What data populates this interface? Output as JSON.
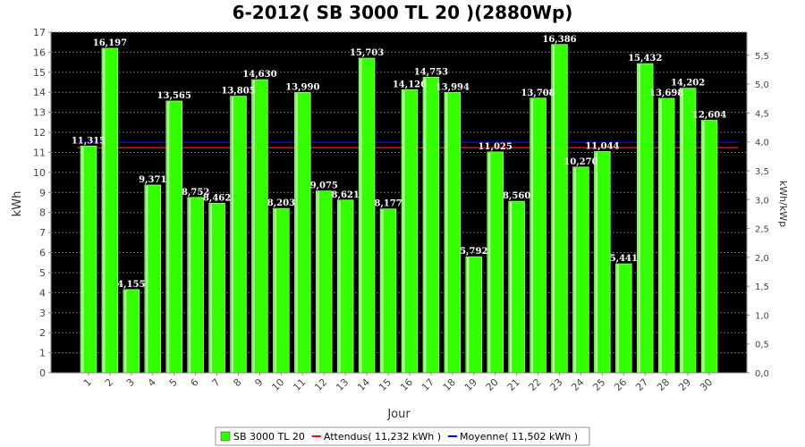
{
  "chart_data": {
    "type": "bar",
    "title": "6-2012( SB 3000 TL 20 )(2880Wp)",
    "xlabel": "Jour",
    "ylabel": "kWh",
    "y2label": "kWh/kWp",
    "ylim": [
      0,
      17
    ],
    "y2lim": [
      0,
      5.9
    ],
    "yticks": [
      "0",
      "1",
      "2",
      "3",
      "4",
      "5",
      "6",
      "7",
      "8",
      "9",
      "10",
      "11",
      "12",
      "13",
      "14",
      "15",
      "16",
      "17"
    ],
    "y2ticks": [
      "0,0",
      "0,5",
      "1,0",
      "1,5",
      "2,0",
      "2,5",
      "3,0",
      "3,5",
      "4,0",
      "4,5",
      "5,0",
      "5,5"
    ],
    "categories": [
      "1",
      "2",
      "3",
      "4",
      "5",
      "6",
      "7",
      "8",
      "9",
      "10",
      "11",
      "12",
      "13",
      "14",
      "15",
      "16",
      "17",
      "18",
      "19",
      "20",
      "21",
      "22",
      "23",
      "24",
      "25",
      "26",
      "27",
      "28",
      "29",
      "30"
    ],
    "series": [
      {
        "name": "SB 3000 TL 20",
        "color": "#33ff00",
        "values": [
          11.315,
          16.197,
          4.155,
          9.371,
          13.565,
          8.752,
          8.462,
          13.805,
          14.63,
          8.203,
          13.99,
          9.075,
          8.621,
          15.703,
          8.177,
          14.126,
          14.753,
          13.994,
          5.792,
          11.025,
          8.56,
          13.708,
          16.386,
          10.27,
          11.044,
          5.441,
          15.432,
          13.698,
          14.202,
          12.604
        ],
        "labels": [
          "11,315",
          "16,197",
          "4,155",
          "9,371",
          "13,565",
          "8,752",
          "8,462",
          "13,805",
          "14,630",
          "8,203",
          "13,990",
          "9,075",
          "8,621",
          "15,703",
          "8,177",
          "14,126",
          "14,753",
          "13,994",
          "5,792",
          "11,025",
          "8,560",
          "13,708",
          "16,386",
          "10,270",
          "11,044",
          "5,441",
          "15,432",
          "13,698",
          "14,202",
          "12,604"
        ]
      }
    ],
    "reference_lines": [
      {
        "name": "Attendus( 11,232 kWh )",
        "value": 11.232,
        "color": "#ff0000"
      },
      {
        "name": "Moyenne( 11,502 kWh )",
        "value": 11.502,
        "color": "#0000ff"
      }
    ],
    "legend": {
      "placement": "bottom",
      "items": [
        {
          "label": "SB 3000 TL 20",
          "kind": "box",
          "color": "#33ff00"
        },
        {
          "label": "Attendus( 11,232 kWh )",
          "kind": "line",
          "color": "#ff0000"
        },
        {
          "label": "Moyenne( 11,502 kWh )",
          "kind": "line",
          "color": "#0000ff"
        }
      ]
    },
    "plot_background": "#000000",
    "grid": true
  }
}
